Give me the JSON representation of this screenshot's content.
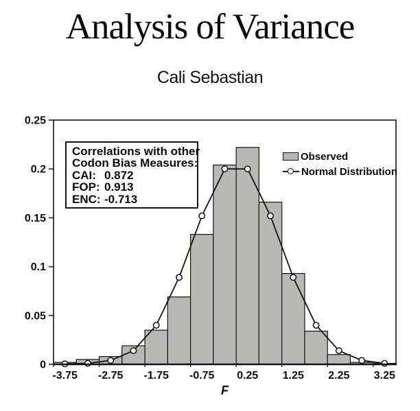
{
  "title": "Analysis of Variance",
  "subtitle": "Cali Sebastian",
  "annotation": {
    "line1": "Correlations with other",
    "line2": "Codon Bias Measures:",
    "rows": [
      {
        "label": "CAI:",
        "value": "0.872"
      },
      {
        "label": "FOP:",
        "value": "0.913"
      },
      {
        "label": "ENC:",
        "value": "-0.713"
      }
    ]
  },
  "legend": {
    "observed": "Observed",
    "normal": "Normal Distribution"
  },
  "chart_data": {
    "type": "bar",
    "subtype": "histogram with normal distribution line overlay",
    "x": [
      -3.75,
      -3.25,
      -2.75,
      -2.25,
      -1.75,
      -1.25,
      -0.75,
      -0.25,
      0.25,
      0.75,
      1.25,
      1.75,
      2.25,
      2.75,
      3.25
    ],
    "bin_width": 0.5,
    "x_range": [
      -4.0,
      3.5
    ],
    "series": [
      {
        "name": "Observed",
        "type": "bar",
        "values": [
          0.002,
          0.005,
          0.008,
          0.019,
          0.035,
          0.069,
          0.133,
          0.204,
          0.222,
          0.166,
          0.093,
          0.034,
          0.01,
          0.002,
          0.001
        ]
      },
      {
        "name": "Normal Distribution",
        "type": "line+marker",
        "values": [
          0.0005,
          0.001,
          0.004,
          0.014,
          0.04,
          0.089,
          0.152,
          0.2,
          0.2,
          0.152,
          0.089,
          0.04,
          0.014,
          0.004,
          0.001
        ]
      }
    ],
    "xlabel": "F",
    "ylabel": "",
    "ylim": [
      0,
      0.25
    ],
    "ytick_labels": [
      "0",
      "0.05",
      "0.1",
      "0.15",
      "0.2",
      "0.25"
    ],
    "xtick_labels": [
      "-3.75",
      "-2.75",
      "-1.75",
      "-0.75",
      "0.25",
      "1.25",
      "2.25",
      "3.25"
    ],
    "grid": false,
    "legend_position": "inside top-right"
  },
  "colors": {
    "bar_fill": "#b9b8b4",
    "bar_stroke": "#141414",
    "line": "#121212",
    "marker_fill": "#ffffff",
    "text": "#0b0b0b"
  }
}
